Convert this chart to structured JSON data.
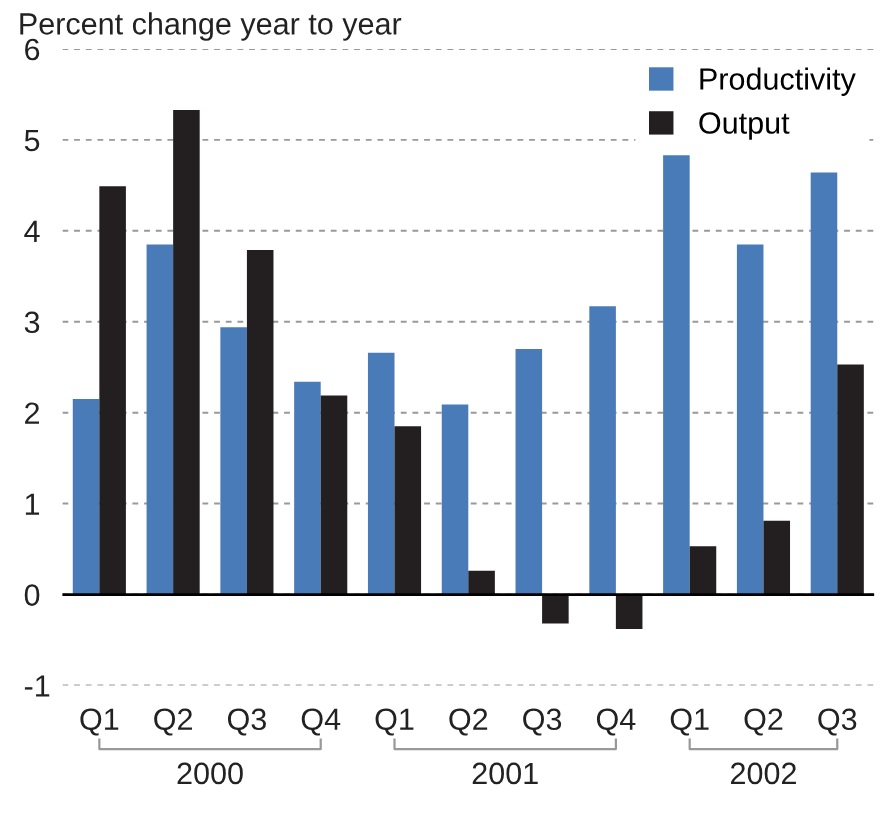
{
  "chart_data": {
    "type": "bar",
    "ylabel": "Percent change year to year",
    "categories": [
      "Q1",
      "Q2",
      "Q3",
      "Q4",
      "Q1",
      "Q2",
      "Q3",
      "Q4",
      "Q1",
      "Q2",
      "Q3"
    ],
    "series": [
      {
        "name": "Productivity",
        "color": "#4a7bb9",
        "values": [
          2.15,
          3.85,
          2.94,
          2.34,
          2.66,
          2.09,
          2.7,
          3.17,
          4.83,
          3.85,
          4.64
        ]
      },
      {
        "name": "Output",
        "color": "#231f20",
        "values": [
          4.49,
          5.33,
          3.79,
          2.19,
          1.85,
          0.26,
          -0.32,
          -0.38,
          0.53,
          0.81,
          2.53
        ]
      }
    ],
    "annotations": [
      "2000",
      "2001",
      "2002"
    ],
    "ylim": [
      -1,
      6
    ],
    "yticks": [
      -1,
      0,
      1,
      2,
      3,
      4,
      5,
      6
    ],
    "grid": "y",
    "legend": "top right"
  }
}
